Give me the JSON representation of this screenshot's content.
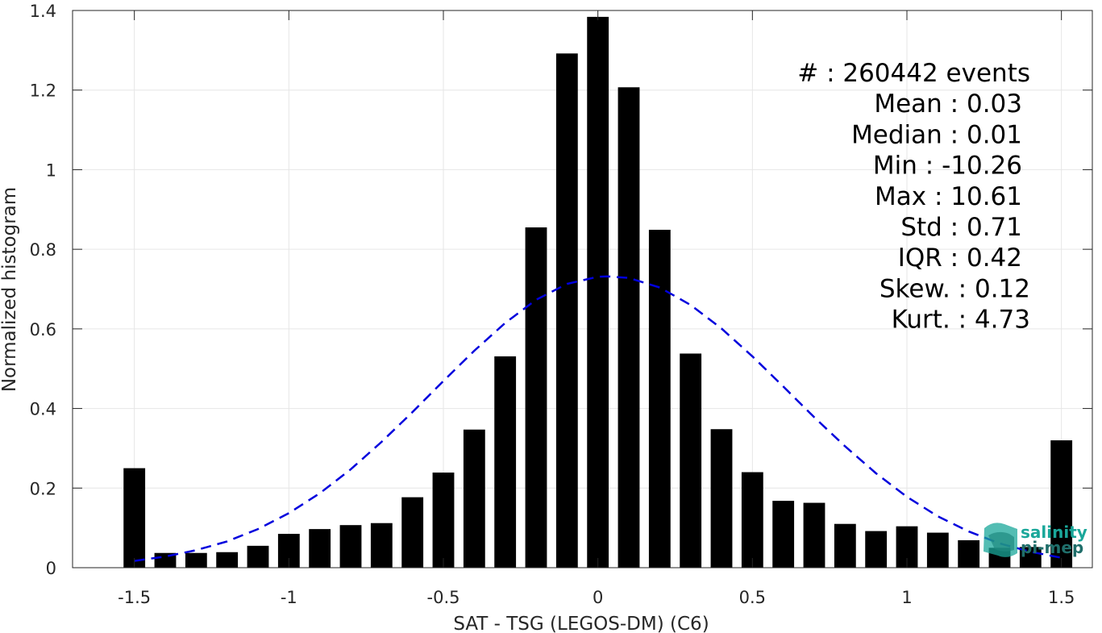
{
  "chart_data": {
    "type": "bar",
    "xlabel": "SAT - TSG (LEGOS-DM) (C6)",
    "ylabel": "Normalized histogram",
    "xlim": [
      -1.7,
      1.6
    ],
    "ylim": [
      0,
      1.4
    ],
    "grid": true,
    "bar_width": 0.07,
    "x_ticks": [
      -1.5,
      -1,
      -0.5,
      0,
      0.5,
      1,
      1.5
    ],
    "x_tick_labels": [
      "-1.5",
      "-1",
      "-0.5",
      "0",
      "0.5",
      "1",
      "1.5"
    ],
    "y_ticks": [
      0,
      0.2,
      0.4,
      0.6,
      0.8,
      1,
      1.2,
      1.4
    ],
    "y_tick_labels": [
      "0",
      "0.2",
      "0.4",
      "0.6",
      "0.8",
      "1",
      "1.2",
      "1.4"
    ],
    "x": [
      -1.5,
      -1.4,
      -1.3,
      -1.2,
      -1.1,
      -1.0,
      -0.9,
      -0.8,
      -0.7,
      -0.6,
      -0.5,
      -0.4,
      -0.3,
      -0.2,
      -0.1,
      0.0,
      0.1,
      0.2,
      0.3,
      0.4,
      0.5,
      0.6,
      0.7,
      0.8,
      0.9,
      1.0,
      1.1,
      1.2,
      1.3,
      1.4,
      1.5
    ],
    "values": [
      0.25,
      0.037,
      0.037,
      0.039,
      0.055,
      0.085,
      0.097,
      0.107,
      0.112,
      0.177,
      0.239,
      0.347,
      0.531,
      0.855,
      1.292,
      1.384,
      1.207,
      0.849,
      0.538,
      0.348,
      0.24,
      0.168,
      0.163,
      0.11,
      0.092,
      0.104,
      0.088,
      0.069,
      0.05,
      0.052,
      0.32
    ],
    "bar_color": "#000000",
    "fit_curve": {
      "style": "dashed",
      "color": "#0000dd",
      "x": [
        -1.5,
        -1.4,
        -1.3,
        -1.2,
        -1.1,
        -1.0,
        -0.9,
        -0.8,
        -0.7,
        -0.6,
        -0.5,
        -0.4,
        -0.3,
        -0.2,
        -0.1,
        0.0,
        0.03,
        0.1,
        0.2,
        0.3,
        0.4,
        0.5,
        0.6,
        0.7,
        0.8,
        0.9,
        1.0,
        1.1,
        1.2,
        1.3,
        1.4,
        1.5
      ],
      "y": [
        0.017,
        0.028,
        0.044,
        0.066,
        0.097,
        0.137,
        0.187,
        0.247,
        0.316,
        0.391,
        0.469,
        0.545,
        0.615,
        0.673,
        0.713,
        0.731,
        0.732,
        0.728,
        0.704,
        0.66,
        0.601,
        0.531,
        0.455,
        0.378,
        0.305,
        0.237,
        0.178,
        0.129,
        0.091,
        0.061,
        0.04,
        0.025
      ]
    },
    "annotations": [
      "#  : 260442 events",
      "Mean : 0.03",
      "Median : 0.01",
      "Min : -10.26",
      "Max : 10.61",
      "Std : 0.71",
      "IQR : 0.42",
      "Skew. : 0.12",
      "Kurt. : 4.73"
    ]
  },
  "logo": {
    "line1": "salinity",
    "line2": "pi-mep",
    "colors": [
      "#1aa79a",
      "#1f6e6a"
    ]
  }
}
